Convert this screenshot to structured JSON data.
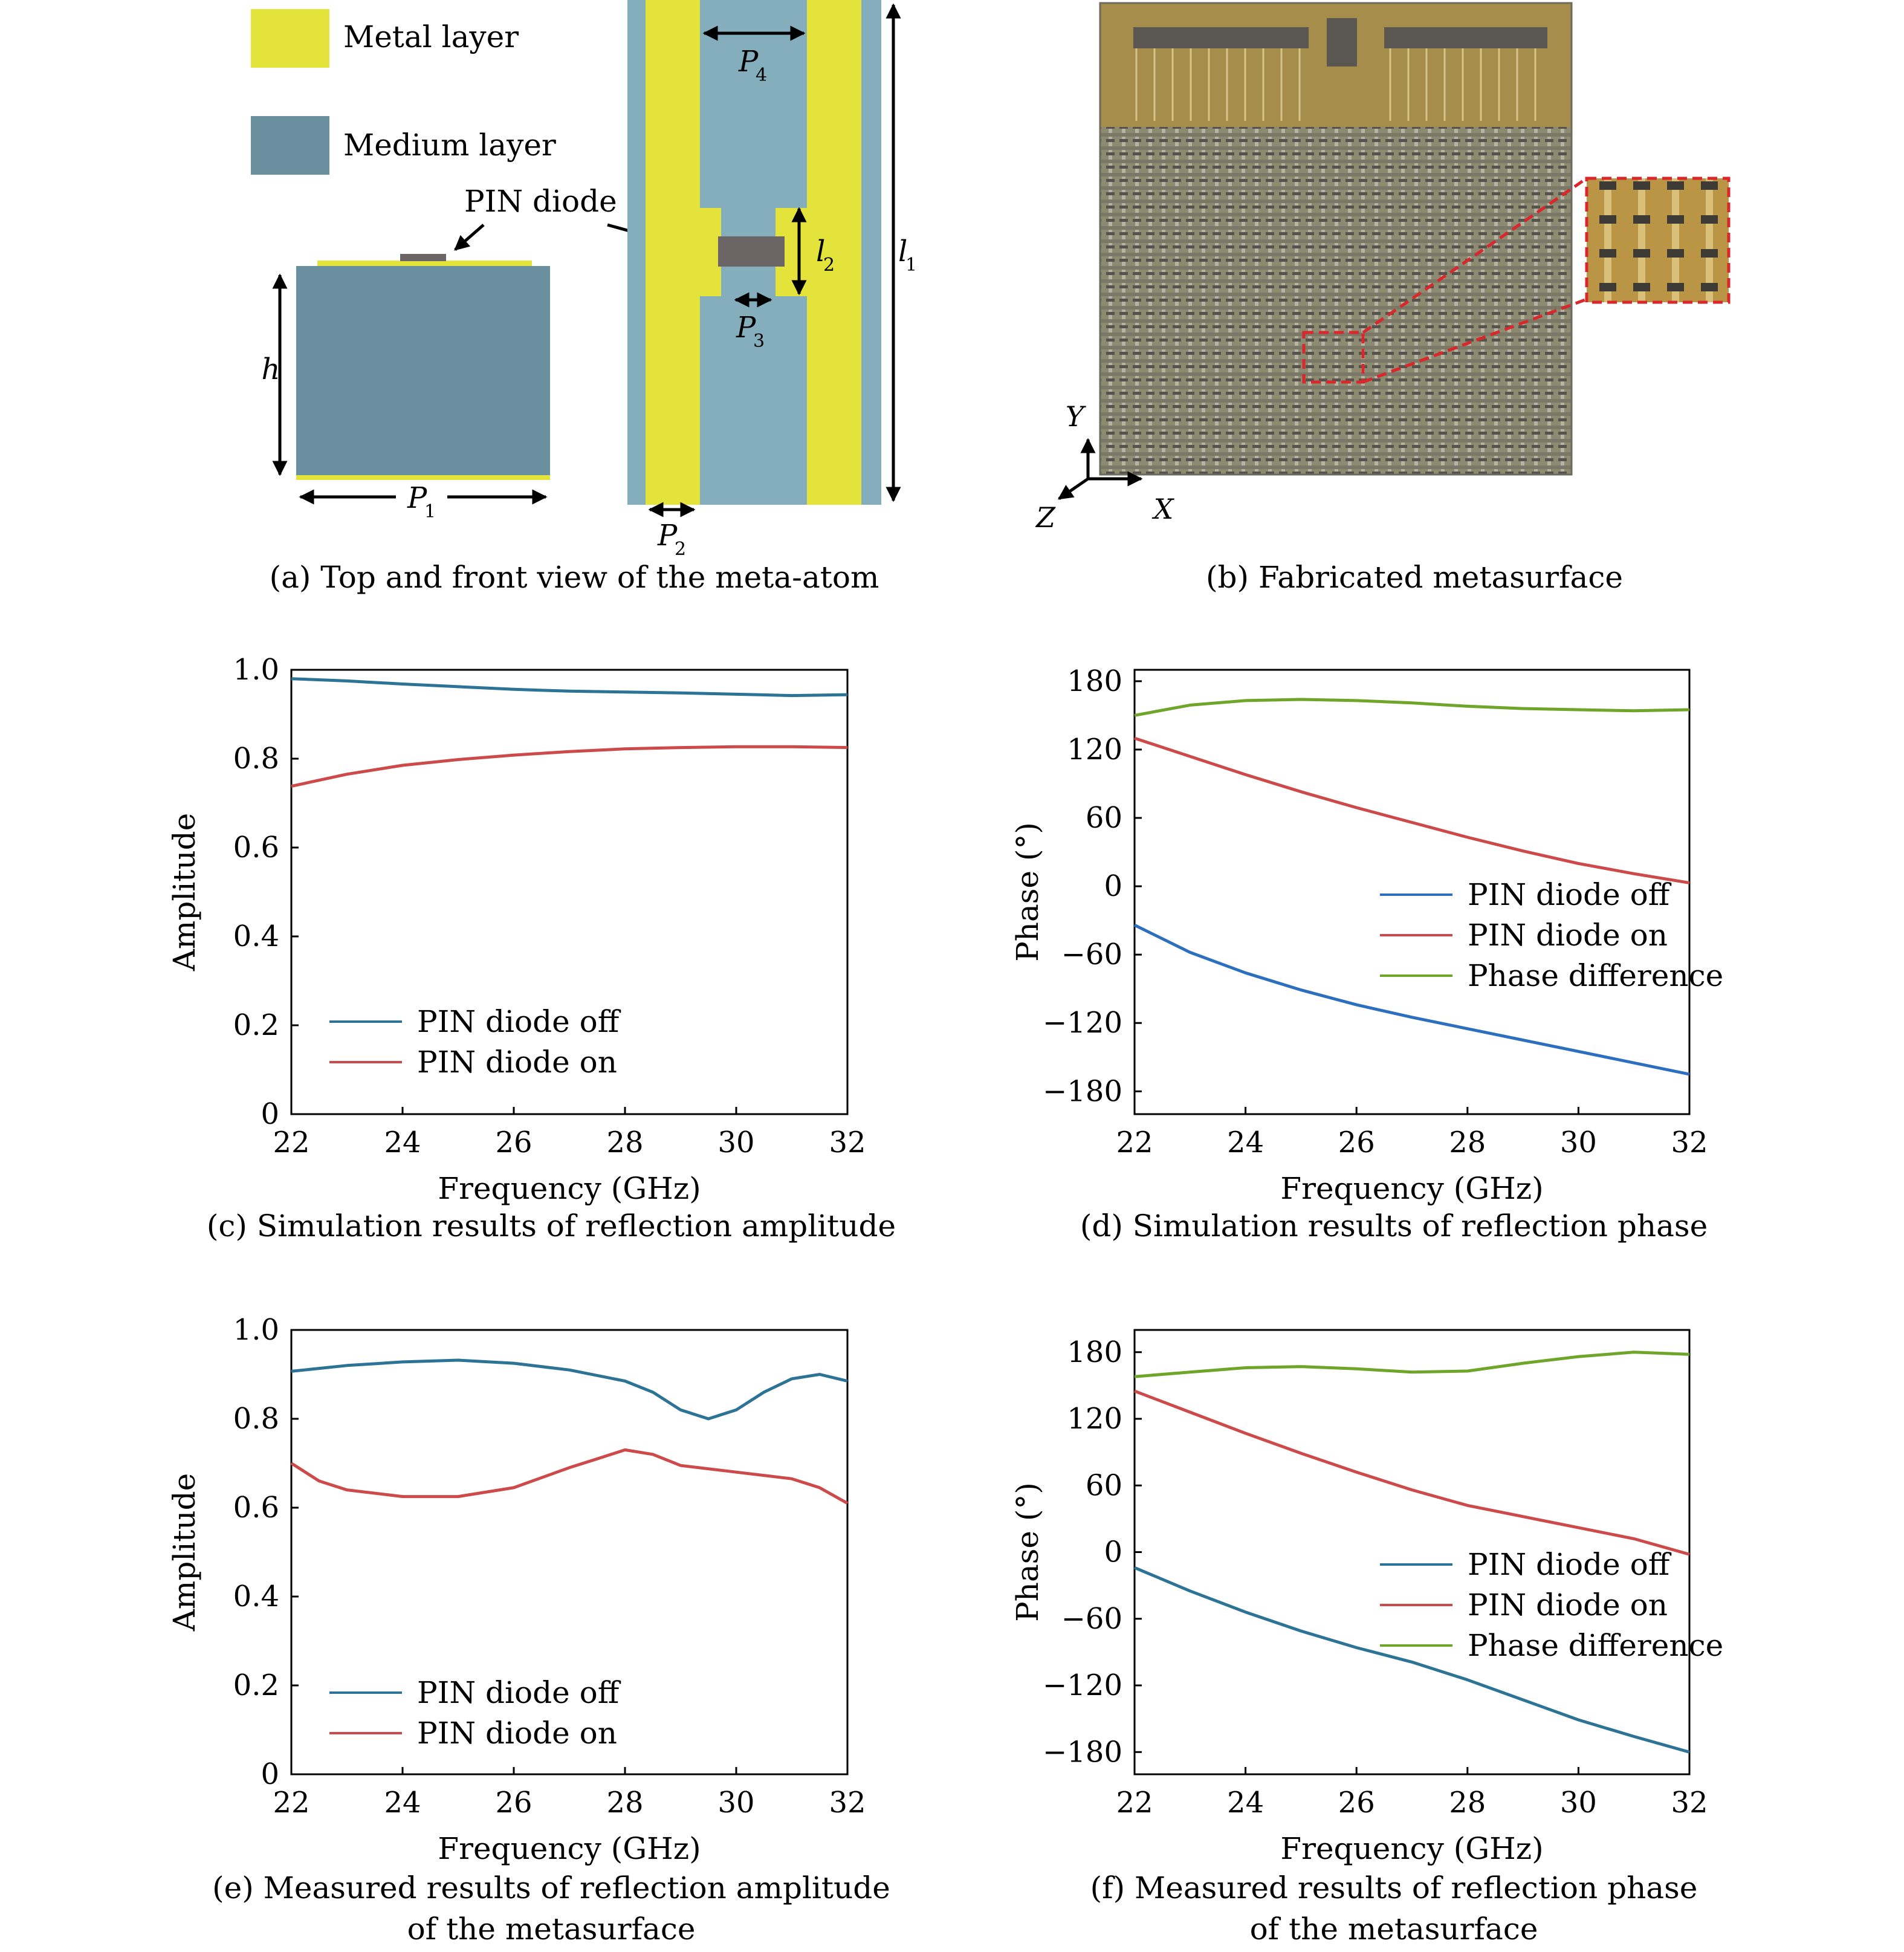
{
  "legend_keys": {
    "metal_label": "Metal layer",
    "medium_label": "Medium layer"
  },
  "colors": {
    "metal": "#e4e33c",
    "medium_front": "#6a8f9e",
    "medium_top": "#85aebd",
    "diode": "#6b6566",
    "off": "#2c7396",
    "on": "#cc4a4a",
    "diff": "#6fa52a",
    "off_meas_phase": "#2d6fbf"
  },
  "panel_a": {
    "diode_label": "PIN diode",
    "h_label": "h",
    "P1": "P",
    "P1_sub": "1",
    "P2": "P",
    "P2_sub": "2",
    "P3": "P",
    "P3_sub": "3",
    "P4": "P",
    "P4_sub": "4",
    "l1": "l",
    "l1_sub": "1",
    "l2": "l",
    "l2_sub": "2",
    "caption": "(a) Top and front view of the meta-atom"
  },
  "panel_b": {
    "axis_y": "Y",
    "axis_x": "X",
    "axis_z": "Z",
    "caption": "(b) Fabricated metasurface"
  },
  "chart_data": [
    {
      "id": "c",
      "type": "line",
      "caption": "(c) Simulation results of reflection amplitude",
      "xlabel": "Frequency (GHz)",
      "ylabel": "Amplitude",
      "xlim": [
        22,
        32
      ],
      "ylim": [
        0,
        1
      ],
      "xticks": [
        22,
        24,
        26,
        28,
        30,
        32
      ],
      "yticks": [
        0,
        0.2,
        0.4,
        0.6,
        0.8,
        1.0
      ],
      "ytick_labels": [
        "0",
        "0.2",
        "0.4",
        "0.6",
        "0.8",
        "1.0"
      ],
      "legend_position": "lower-left",
      "grid": false,
      "series": [
        {
          "name": "PIN diode off",
          "x": [
            22,
            23,
            24,
            25,
            26,
            27,
            28,
            29,
            30,
            31,
            32
          ],
          "values": [
            0.98,
            0.975,
            0.968,
            0.962,
            0.956,
            0.952,
            0.95,
            0.948,
            0.945,
            0.942,
            0.944
          ]
        },
        {
          "name": "PIN diode on",
          "x": [
            22,
            23,
            24,
            25,
            26,
            27,
            28,
            29,
            30,
            31,
            32
          ],
          "values": [
            0.738,
            0.765,
            0.785,
            0.798,
            0.808,
            0.816,
            0.822,
            0.825,
            0.827,
            0.827,
            0.825
          ]
        }
      ]
    },
    {
      "id": "d",
      "type": "line",
      "caption": "(d) Simulation results of reflection phase",
      "xlabel": "Frequency (GHz)",
      "ylabel": "Phase (°)",
      "xlim": [
        22,
        32
      ],
      "ylim": [
        -200,
        190
      ],
      "xticks": [
        22,
        24,
        26,
        28,
        30,
        32
      ],
      "yticks": [
        -180,
        -120,
        -60,
        0,
        60,
        120,
        180
      ],
      "ytick_labels": [
        "−180",
        "−120",
        "−60",
        "0",
        "60",
        "120",
        "180"
      ],
      "legend_position": "middle-right",
      "grid": false,
      "series": [
        {
          "name": "PIN diode off",
          "x": [
            22,
            23,
            24,
            25,
            26,
            27,
            28,
            29,
            30,
            31,
            32
          ],
          "values": [
            -34,
            -58,
            -76,
            -91,
            -104,
            -115,
            -125,
            -135,
            -145,
            -155,
            -165
          ]
        },
        {
          "name": "PIN diode on",
          "x": [
            22,
            23,
            24,
            25,
            26,
            27,
            28,
            29,
            30,
            31,
            32
          ],
          "values": [
            130,
            114,
            98,
            83,
            69,
            56,
            43,
            31,
            20,
            11,
            3
          ]
        },
        {
          "name": "Phase difference",
          "x": [
            22,
            23,
            24,
            25,
            26,
            27,
            28,
            29,
            30,
            31,
            32
          ],
          "values": [
            150,
            159,
            163,
            164,
            163,
            161,
            158,
            156,
            155,
            154,
            155
          ]
        }
      ]
    },
    {
      "id": "e",
      "type": "line",
      "caption_line1": "(e) Measured results of reflection amplitude",
      "caption_line2": "of the metasurface",
      "xlabel": "Frequency (GHz)",
      "ylabel": "Amplitude",
      "xlim": [
        22,
        32
      ],
      "ylim": [
        0,
        1
      ],
      "xticks": [
        22,
        24,
        26,
        28,
        30,
        32
      ],
      "yticks": [
        0,
        0.2,
        0.4,
        0.6,
        0.8,
        1.0
      ],
      "ytick_labels": [
        "0",
        "0.2",
        "0.4",
        "0.6",
        "0.8",
        "1.0"
      ],
      "legend_position": "lower-left",
      "grid": false,
      "series": [
        {
          "name": "PIN diode off",
          "x": [
            22,
            23,
            24,
            25,
            26,
            27,
            28,
            28.5,
            29,
            29.5,
            30,
            30.5,
            31,
            31.5,
            32
          ],
          "values": [
            0.907,
            0.92,
            0.928,
            0.932,
            0.925,
            0.91,
            0.885,
            0.86,
            0.82,
            0.8,
            0.82,
            0.86,
            0.89,
            0.9,
            0.885
          ]
        },
        {
          "name": "PIN diode on",
          "x": [
            22,
            22.5,
            23,
            24,
            25,
            26,
            27,
            27.5,
            28,
            28.5,
            29,
            30,
            31,
            31.5,
            32
          ],
          "values": [
            0.7,
            0.66,
            0.64,
            0.625,
            0.625,
            0.645,
            0.69,
            0.71,
            0.73,
            0.72,
            0.695,
            0.68,
            0.665,
            0.645,
            0.61
          ]
        }
      ]
    },
    {
      "id": "f",
      "type": "line",
      "caption_line1": "(f) Measured results of reflection phase",
      "caption_line2": "of the metasurface",
      "xlabel": "Frequency (GHz)",
      "ylabel": "Phase (°)",
      "xlim": [
        22,
        32
      ],
      "ylim": [
        -200,
        200
      ],
      "xticks": [
        22,
        24,
        26,
        28,
        30,
        32
      ],
      "yticks": [
        -180,
        -120,
        -60,
        0,
        60,
        120,
        180
      ],
      "ytick_labels": [
        "−180",
        "−120",
        "−60",
        "0",
        "60",
        "120",
        "180"
      ],
      "legend_position": "middle-right",
      "grid": false,
      "series": [
        {
          "name": "PIN diode off",
          "x": [
            22,
            23,
            24,
            25,
            26,
            27,
            28,
            29,
            30,
            31,
            32
          ],
          "values": [
            -14,
            -35,
            -54,
            -71,
            -86,
            -99,
            -115,
            -133,
            -151,
            -166,
            -180
          ]
        },
        {
          "name": "PIN diode on",
          "x": [
            22,
            23,
            24,
            25,
            26,
            27,
            28,
            29,
            30,
            31,
            32
          ],
          "values": [
            145,
            126,
            107,
            89,
            72,
            56,
            42,
            32,
            22,
            12,
            -2
          ]
        },
        {
          "name": "Phase difference",
          "x": [
            22,
            23,
            24,
            25,
            26,
            27,
            28,
            29,
            30,
            31,
            32
          ],
          "values": [
            158,
            162,
            166,
            167,
            165,
            162,
            163,
            170,
            176,
            180,
            178
          ]
        }
      ]
    }
  ]
}
